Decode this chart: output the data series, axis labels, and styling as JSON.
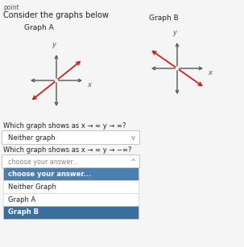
{
  "bg_color": "#e8e8e8",
  "white_bg": "#f5f5f5",
  "title_text": "Consider the graphs below",
  "point_text": "point",
  "graph_a_label": "Graph A",
  "graph_b_label": "Graph B",
  "axis_color": "#555555",
  "line_color_a": "#cc2222",
  "line_color_b": "#cc2222",
  "line_a_slope": 0.8,
  "line_b_slope": -0.7,
  "question1": "Which graph shows as x → ∞ y → ∞?",
  "answer1": "Neither graph",
  "question2": "Which graph shows as x → ∞ y → −∞?",
  "dropdown_placeholder": "choose your answer...",
  "dropdown_selected_bold": "choose your answer...",
  "dropdown_options": [
    "Neither Graph",
    "Graph A",
    "Graph B"
  ],
  "dropdown_highlight_bg": "#4a80b0",
  "dropdown_last_bg": "#3a70a0",
  "dropdown_light_bg": "#c8d8e8",
  "white": "#ffffff",
  "dark_text": "#222222",
  "gray_text": "#666666",
  "chevron_down": "v",
  "chevron_up": "^"
}
